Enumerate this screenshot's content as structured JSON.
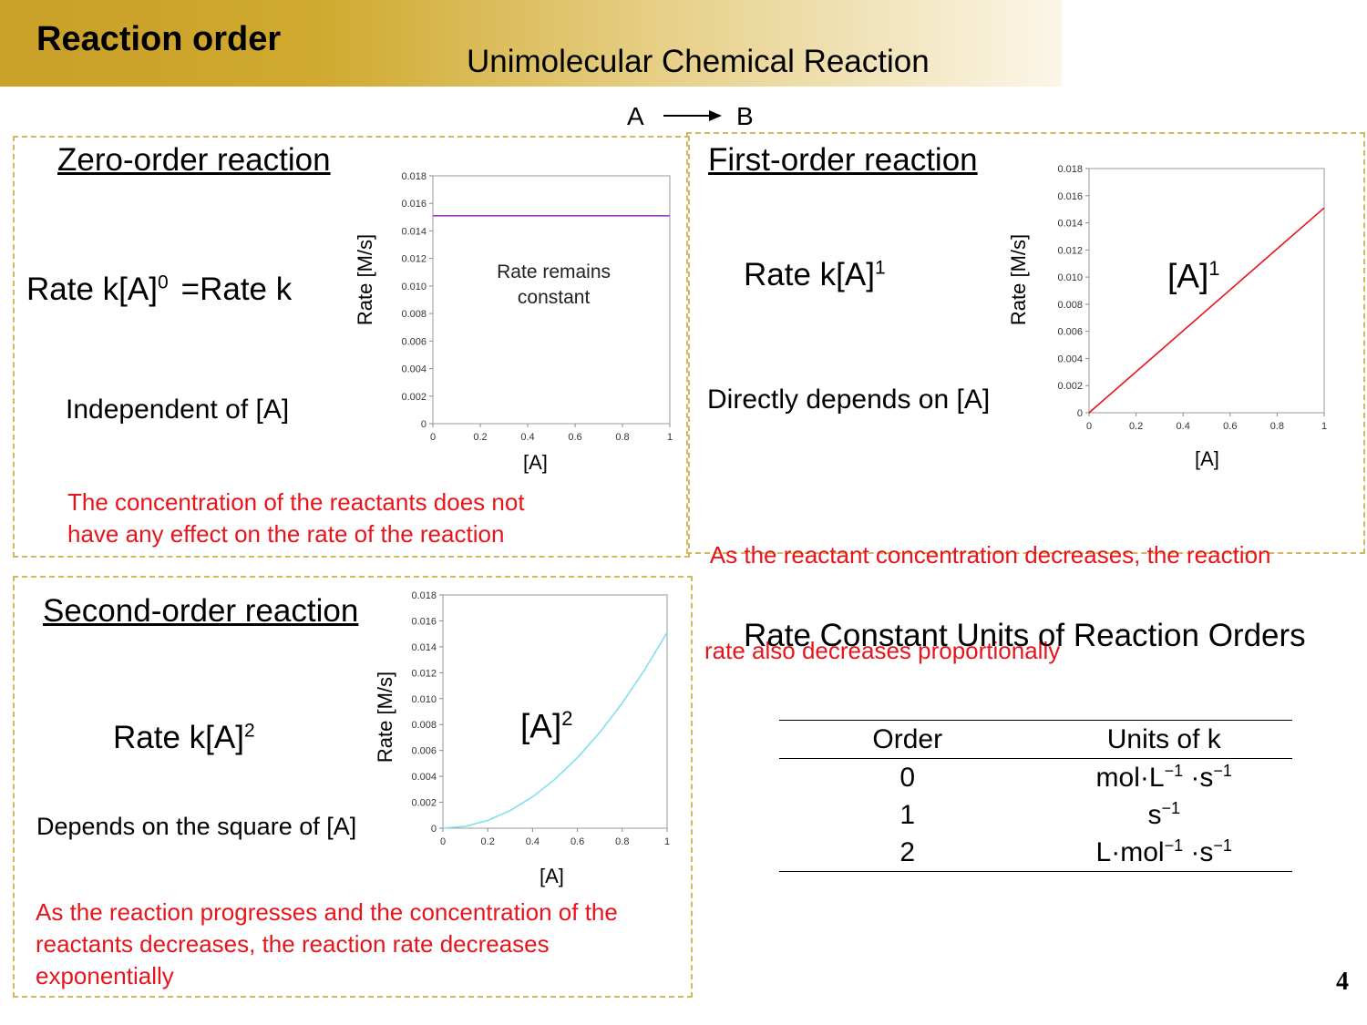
{
  "slide": {
    "title": "Reaction order",
    "subtitle": "Unimolecular Chemical Reaction",
    "page_number": "4",
    "equation": {
      "reactant": "A",
      "product": "B"
    }
  },
  "zero_order": {
    "title": "Zero-order reaction",
    "rate_main": "Rate k[A]",
    "rate_exp": "0",
    "rate_suffix": "=Rate k",
    "desc": "Independent of [A]",
    "note_line1": "The concentration of the reactants does not",
    "note_line2": "have any effect on the rate of the reaction"
  },
  "first_order": {
    "title": "First-order reaction",
    "rate_main": "Rate k[A]",
    "rate_exp": "1",
    "desc": "Directly depends on [A]",
    "curve_base": "[A]",
    "curve_exp": "1",
    "note_line1": " As the reactant concentration decreases, the reaction",
    "note_line2": "rate also decreases proportionally"
  },
  "second_order": {
    "title": "Second-order reaction",
    "rate_main": "Rate k[A]",
    "rate_exp": "2",
    "desc": "Depends on the square of [A]",
    "curve_base": "[A]",
    "curve_exp": "2",
    "note_line1": "As the reaction progresses and the concentration of the",
    "note_line2": "reactants decreases, the reaction rate decreases",
    "note_line3": "exponentially"
  },
  "units_table": {
    "title": "Rate Constant Units of Reaction Orders",
    "headers": [
      "Order",
      "Units of k"
    ],
    "rows": [
      {
        "order": "0",
        "u1": "mol·L",
        "e1": "−1",
        "u2": " ·s",
        "e2": "−1"
      },
      {
        "order": "1",
        "u1": "s",
        "e1": "−1",
        "u2": "",
        "e2": ""
      },
      {
        "order": "2",
        "u1": "L·mol",
        "e1": "−1",
        "u2": " ·s",
        "e2": "−1"
      }
    ]
  },
  "colors": {
    "zero_line": "#a03cb4",
    "first_line": "#e8141b",
    "second_line": "#7fe0ee",
    "note_red": "#e8141b",
    "panel_border": "#d4b860"
  },
  "chart_data": [
    {
      "type": "line",
      "title": "",
      "xlabel": "[A]",
      "ylabel": "Rate [M/s]",
      "xlim": [
        0,
        1
      ],
      "ylim": [
        0,
        0.018
      ],
      "x_ticks": [
        "0",
        "0.2",
        "0.4",
        "0.6",
        "0.8",
        "1"
      ],
      "y_ticks": [
        "0",
        "0.002",
        "0.004",
        "0.006",
        "0.008",
        "0.010",
        "0.012",
        "0.014",
        "0.016",
        "0.018"
      ],
      "annotation": [
        "Rate remains",
        "constant"
      ],
      "series": [
        {
          "name": "zero-order",
          "x": [
            0,
            1
          ],
          "y": [
            0.0151,
            0.0151
          ]
        }
      ]
    },
    {
      "type": "line",
      "title": "",
      "xlabel": "[A]",
      "ylabel": "Rate [M/s]",
      "xlim": [
        0,
        1
      ],
      "ylim": [
        0,
        0.018
      ],
      "x_ticks": [
        "0",
        "0.2",
        "0.4",
        "0.6",
        "0.8",
        "1"
      ],
      "y_ticks": [
        "0",
        "0.002",
        "0.004",
        "0.006",
        "0.008",
        "0.010",
        "0.012",
        "0.014",
        "0.016",
        "0.018"
      ],
      "series": [
        {
          "name": "first-order",
          "x": [
            0,
            1
          ],
          "y": [
            0,
            0.0151
          ]
        }
      ]
    },
    {
      "type": "line",
      "title": "",
      "xlabel": "[A]",
      "ylabel": "Rate [M/s]",
      "xlim": [
        0,
        1
      ],
      "ylim": [
        0,
        0.018
      ],
      "x_ticks": [
        "0",
        "0.2",
        "0.4",
        "0.6",
        "0.8",
        "1"
      ],
      "y_ticks": [
        "0",
        "0.002",
        "0.004",
        "0.006",
        "0.008",
        "0.010",
        "0.012",
        "0.014",
        "0.016",
        "0.018"
      ],
      "series": [
        {
          "name": "second-order",
          "x": [
            0,
            0.1,
            0.2,
            0.3,
            0.4,
            0.5,
            0.6,
            0.7,
            0.8,
            0.9,
            1.0
          ],
          "y": [
            0,
            0.00015,
            0.0006,
            0.00136,
            0.00242,
            0.00378,
            0.00544,
            0.0074,
            0.00966,
            0.01223,
            0.0151
          ]
        }
      ]
    }
  ]
}
